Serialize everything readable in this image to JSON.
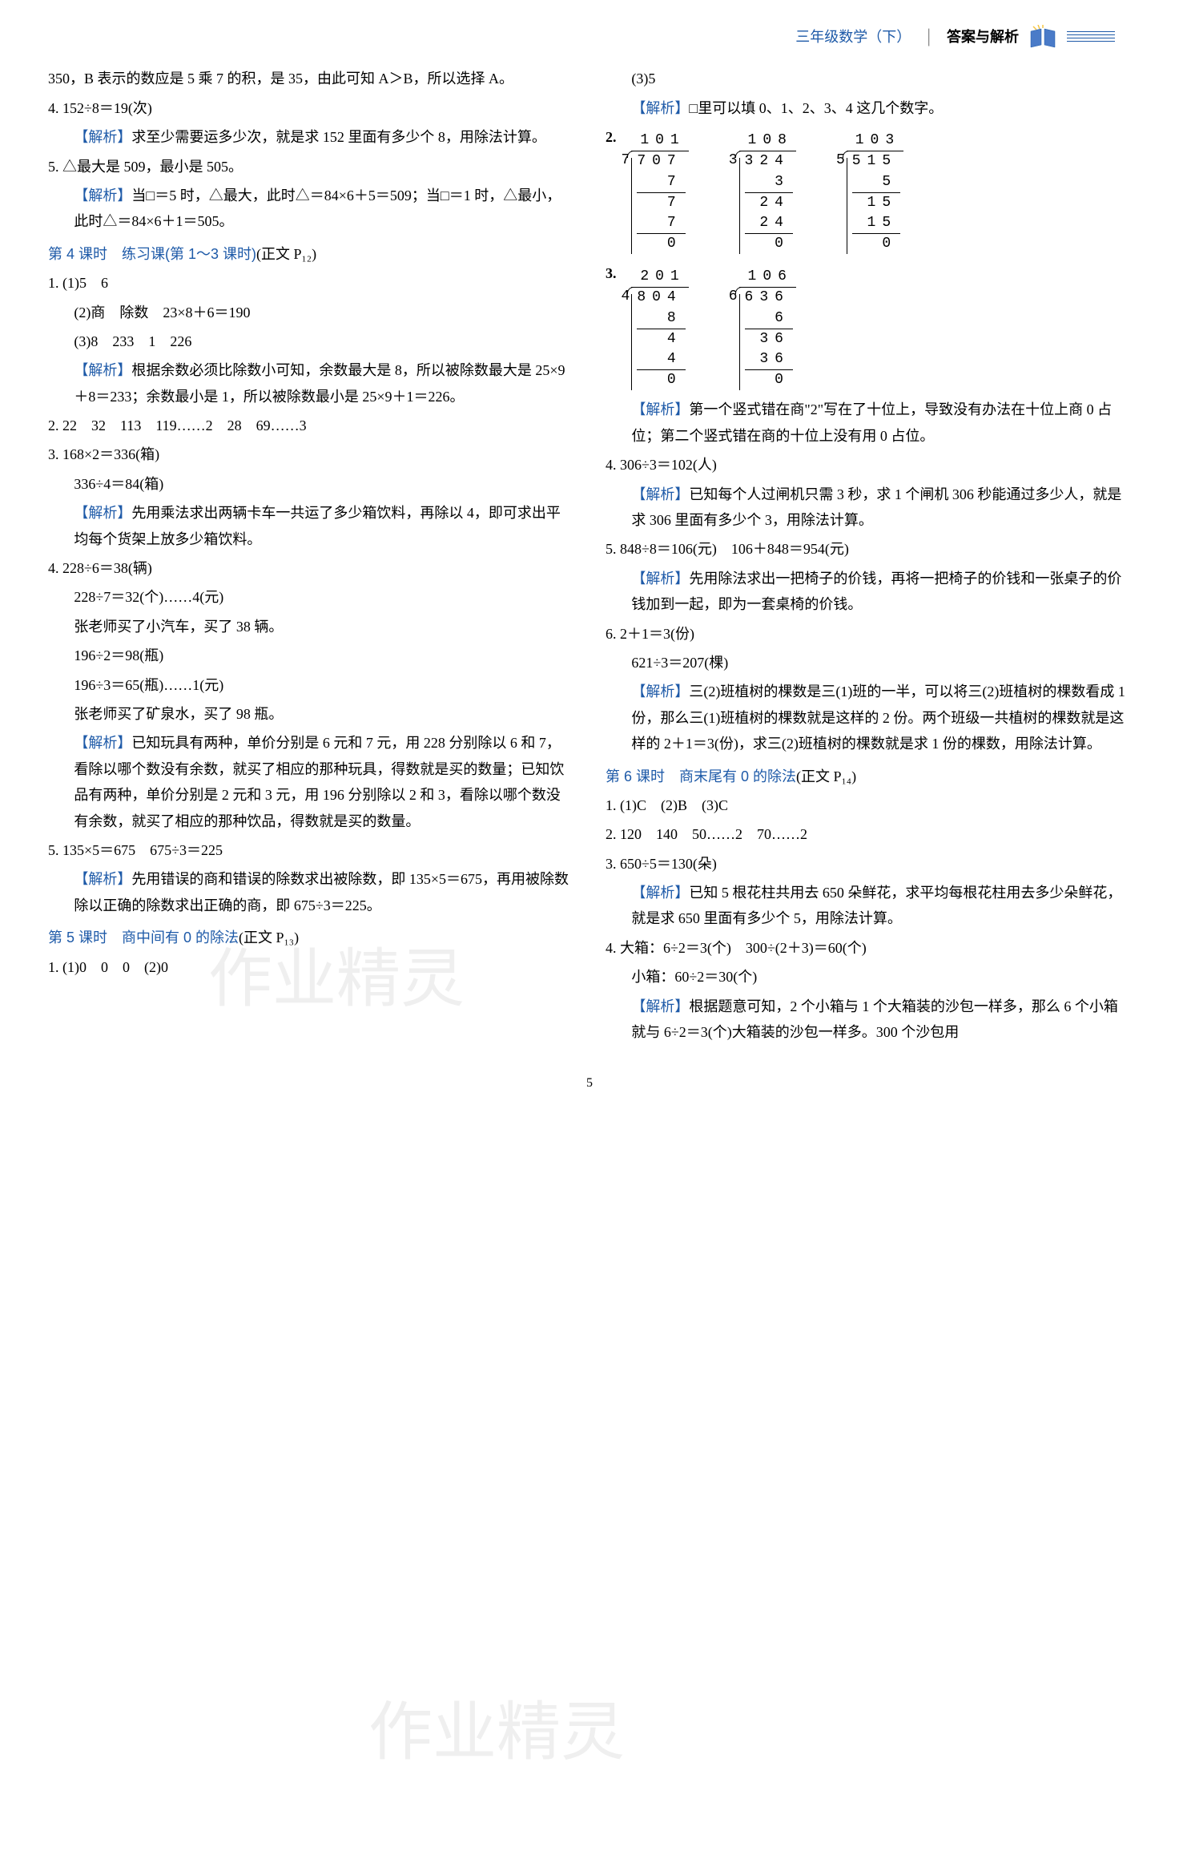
{
  "header": {
    "subject": "三年级数学（下）",
    "title": "答案与解析"
  },
  "colors": {
    "accent": "#1e5aa8",
    "text": "#000000",
    "watermark": "rgba(150,150,150,0.15)"
  },
  "left": {
    "p350": "350，B 表示的数应是 5 乘 7 的积，是 35，由此可知 A＞B，所以选择 A。",
    "q4": "4. 152÷8＝19(次)",
    "q4_analysis": "求至少需要运多少次，就是求 152 里面有多少个 8，用除法计算。",
    "q5": "5. △最大是 509，最小是 505。",
    "q5_analysis": "当□＝5 时，△最大，此时△＝84×6＋5＝509；当□＝1 时，△最小，此时△＝84×6＋1＝505。",
    "lesson4_title": "第 4 课时　练习课(第 1～3 课时)",
    "lesson4_ref": "(正文 P₁₂)",
    "l4_q1_1": "1. (1)5　6",
    "l4_q1_2": "(2)商　除数　23×8＋6＝190",
    "l4_q1_3": "(3)8　233　1　226",
    "l4_q1_analysis": "根据余数必须比除数小可知，余数最大是 8，所以被除数最大是 25×9＋8＝233；余数最小是 1，所以被除数最小是 25×9＋1＝226。",
    "l4_q2": "2. 22　32　113　119……2　28　69……3",
    "l4_q3_1": "3. 168×2＝336(箱)",
    "l4_q3_2": "336÷4＝84(箱)",
    "l4_q3_analysis": "先用乘法求出两辆卡车一共运了多少箱饮料，再除以 4，即可求出平均每个货架上放多少箱饮料。",
    "l4_q4_1": "4. 228÷6＝38(辆)",
    "l4_q4_2": "228÷7＝32(个)……4(元)",
    "l4_q4_3": "张老师买了小汽车，买了 38 辆。",
    "l4_q4_4": "196÷2＝98(瓶)",
    "l4_q4_5": "196÷3＝65(瓶)……1(元)",
    "l4_q4_6": "张老师买了矿泉水，买了 98 瓶。",
    "l4_q4_analysis": "已知玩具有两种，单价分别是 6 元和 7 元，用 228 分别除以 6 和 7，看除以哪个数没有余数，就买了相应的那种玩具，得数就是买的数量；已知饮品有两种，单价分别是 2 元和 3 元，用 196 分别除以 2 和 3，看除以哪个数没有余数，就买了相应的那种饮品，得数就是买的数量。",
    "l4_q5": "5. 135×5＝675　675÷3＝225",
    "l4_q5_analysis": "先用错误的商和错误的除数求出被除数，即 135×5＝675，再用被除数除以正确的除数求出正确的商，即 675÷3＝225。",
    "lesson5_title": "第 5 课时　商中间有 0 的除法",
    "lesson5_ref": "(正文 P₁₃)",
    "l5_q1": "1. (1)0　0　0　(2)0"
  },
  "right": {
    "l5_q1_3": "(3)5",
    "l5_q1_analysis": "□里可以填 0、1、2、3、4 这几个数字。",
    "l5_q2_label": "2.",
    "longdiv2": [
      {
        "divisor": "7",
        "dividend": "707",
        "quotient": "101",
        "steps": [
          "7",
          " 7",
          " 7",
          " 0"
        ],
        "ulines": [
          0,
          2
        ]
      },
      {
        "divisor": "3",
        "dividend": "324",
        "quotient": "108",
        "steps": [
          "3",
          " 24",
          " 24",
          "  0"
        ],
        "ulines": [
          0,
          2
        ]
      },
      {
        "divisor": "5",
        "dividend": "515",
        "quotient": "103",
        "steps": [
          "5",
          " 15",
          " 15",
          "  0"
        ],
        "ulines": [
          0,
          2
        ]
      }
    ],
    "l5_q3_label": "3.",
    "longdiv3": [
      {
        "divisor": "4",
        "dividend": "804",
        "quotient": "201",
        "steps": [
          "8",
          "  4",
          "  4",
          "  0"
        ],
        "ulines": [
          0,
          2
        ]
      },
      {
        "divisor": "6",
        "dividend": "636",
        "quotient": "106",
        "steps": [
          "6",
          " 36",
          " 36",
          "  0"
        ],
        "ulines": [
          0,
          2
        ]
      }
    ],
    "l5_q3_analysis": "第一个竖式错在商\"2\"写在了十位上，导致没有办法在十位上商 0 占位；第二个竖式错在商的十位上没有用 0 占位。",
    "l5_q4": "4. 306÷3＝102(人)",
    "l5_q4_analysis": "已知每个人过闸机只需 3 秒，求 1 个闸机 306 秒能通过多少人，就是求 306 里面有多少个 3，用除法计算。",
    "l5_q5": "5. 848÷8＝106(元)　106＋848＝954(元)",
    "l5_q5_analysis": "先用除法求出一把椅子的价钱，再将一把椅子的价钱和一张桌子的价钱加到一起，即为一套桌椅的价钱。",
    "l5_q6_1": "6. 2＋1＝3(份)",
    "l5_q6_2": "621÷3＝207(棵)",
    "l5_q6_analysis": "三(2)班植树的棵数是三(1)班的一半，可以将三(2)班植树的棵数看成 1 份，那么三(1)班植树的棵数就是这样的 2 份。两个班级一共植树的棵数就是这样的 2＋1＝3(份)，求三(2)班植树的棵数就是求 1 份的棵数，用除法计算。",
    "lesson6_title": "第 6 课时　商末尾有 0 的除法",
    "lesson6_ref": "(正文 P₁₄)",
    "l6_q1": "1. (1)C　(2)B　(3)C",
    "l6_q2": "2. 120　140　50……2　70……2",
    "l6_q3": "3. 650÷5＝130(朵)",
    "l6_q3_analysis": "已知 5 根花柱共用去 650 朵鲜花，求平均每根花柱用去多少朵鲜花，就是求 650 里面有多少个 5，用除法计算。",
    "l6_q4_1": "4. 大箱：6÷2＝3(个)　300÷(2＋3)＝60(个)",
    "l6_q4_2": "小箱：60÷2＝30(个)",
    "l6_q4_analysis": "根据题意可知，2 个小箱与 1 个大箱装的沙包一样多，那么 6 个小箱就与 6÷2＝3(个)大箱装的沙包一样多。300 个沙包用"
  },
  "labels": {
    "analysis": "【解析】"
  },
  "page_number": "5",
  "watermarks": {
    "wm1": "作业精灵",
    "wm2": "作业精灵"
  }
}
